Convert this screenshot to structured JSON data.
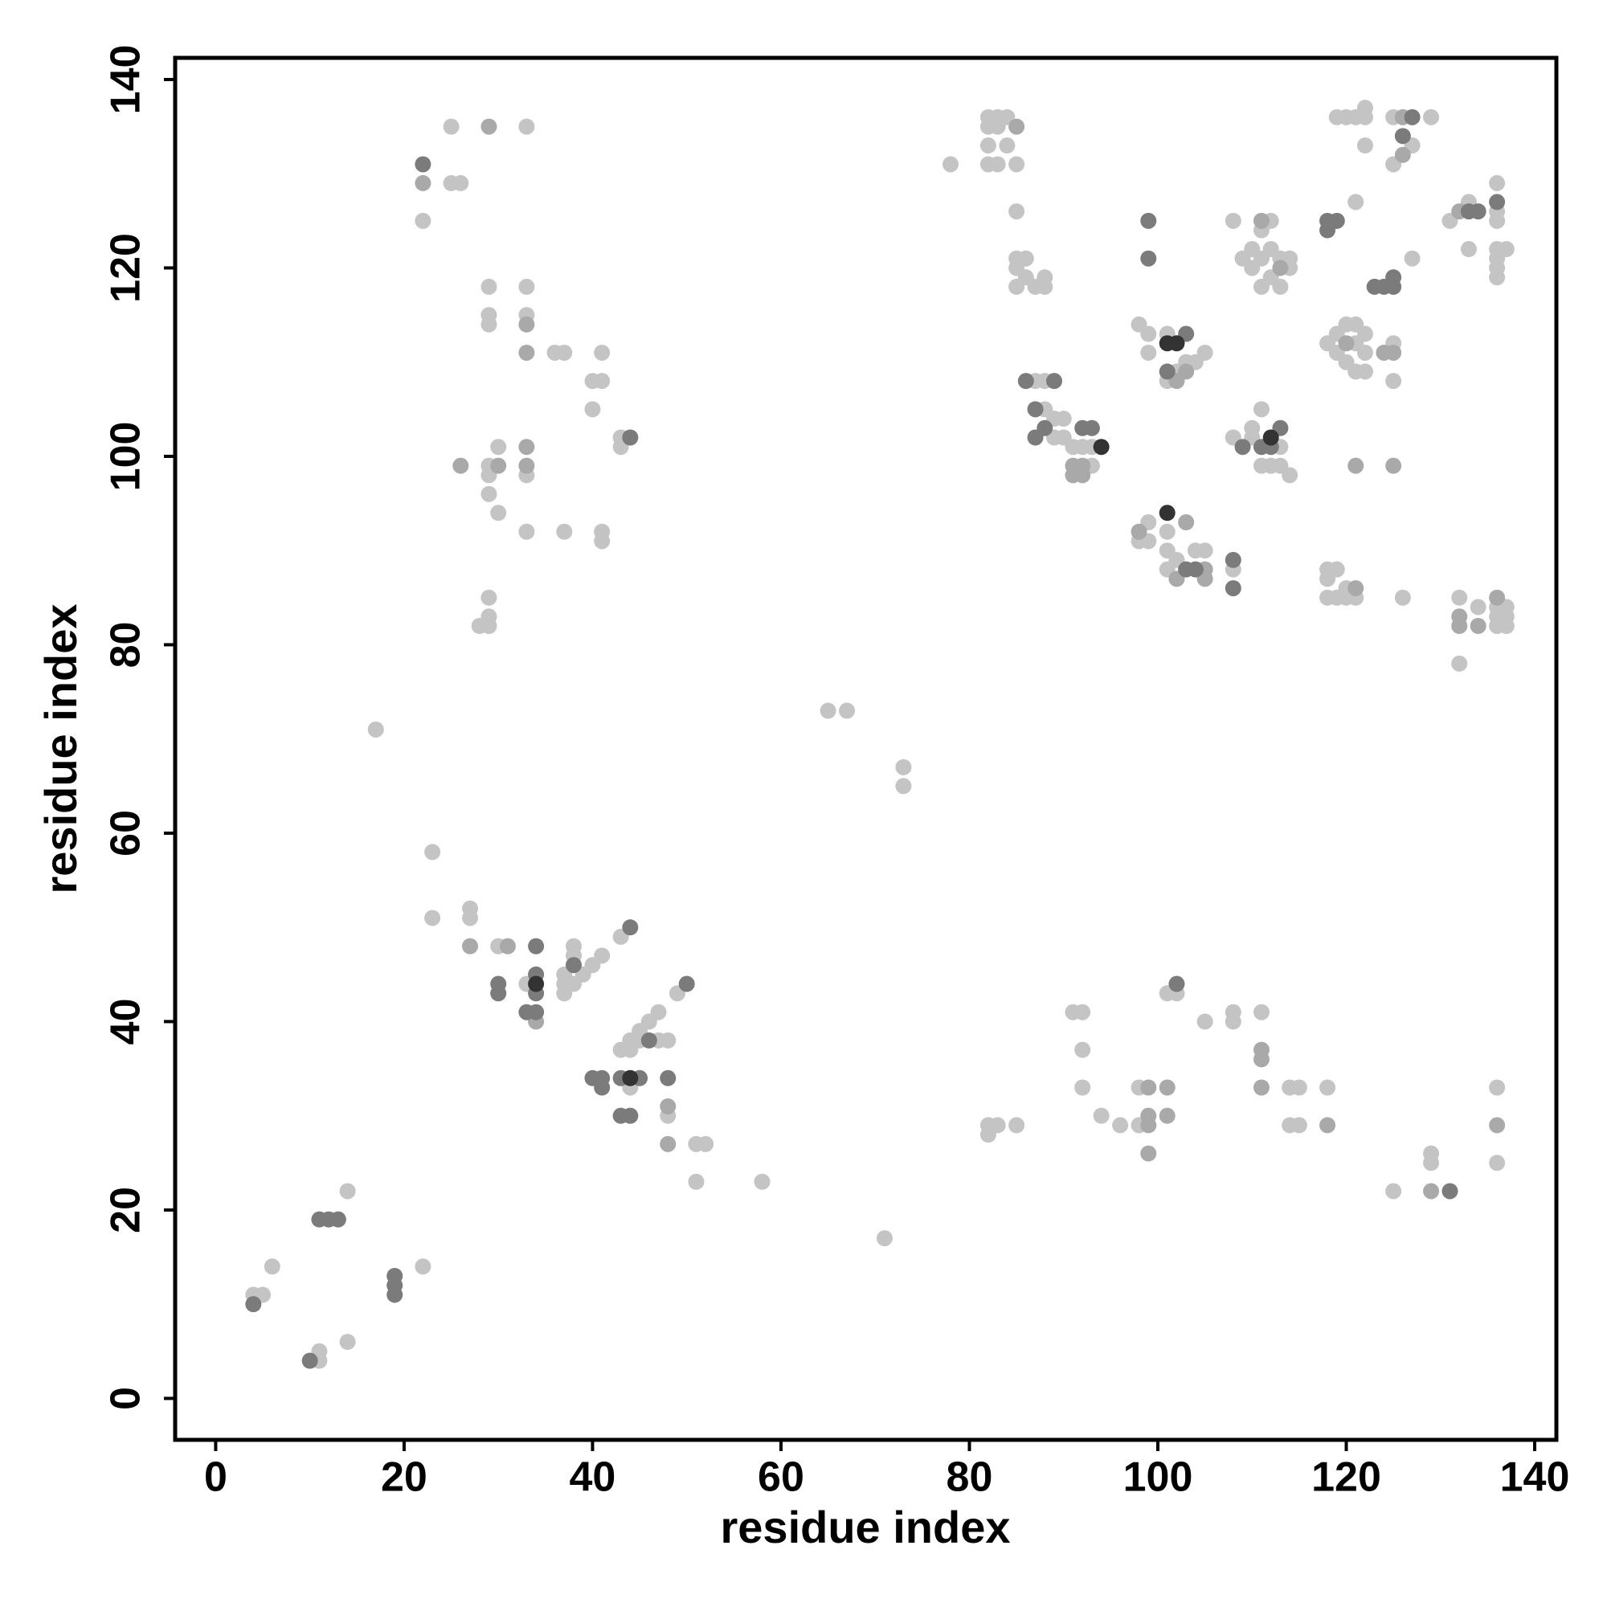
{
  "chart_data": {
    "type": "scatter",
    "x_label": "residue index",
    "y_label": "residue index",
    "xlim": [
      -4.3,
      142.3
    ],
    "ylim": [
      -4.4,
      142.3
    ],
    "xticks": [
      0,
      20,
      40,
      60,
      80,
      100,
      120,
      140
    ],
    "yticks": [
      0,
      20,
      40,
      60,
      80,
      100,
      120,
      140
    ],
    "series": [
      {
        "color": "#c4c4c4",
        "x": [
          4,
          5,
          6,
          11,
          11,
          14,
          14,
          22,
          17,
          23,
          23,
          27,
          27,
          30,
          33,
          37,
          37,
          37,
          38,
          38,
          38,
          39,
          40,
          41,
          43,
          44,
          43,
          44,
          44,
          45,
          45,
          46,
          47,
          47,
          48,
          48,
          49,
          51,
          52,
          51,
          58,
          65,
          67,
          73,
          73,
          71,
          25,
          33,
          25,
          26,
          22,
          29,
          29,
          29,
          33,
          33,
          36,
          37,
          41,
          40,
          41,
          40,
          43,
          43,
          29,
          29,
          30,
          29,
          30,
          33,
          33,
          37,
          41,
          41,
          29,
          29,
          28,
          29,
          82,
          82,
          83,
          85,
          91,
          92,
          92,
          92,
          94,
          96,
          98,
          98,
          101,
          102,
          105,
          108,
          108,
          111,
          114,
          115,
          114,
          115,
          118,
          125,
          129,
          129,
          136,
          136,
          78,
          82,
          83,
          84,
          82,
          83,
          82,
          84,
          82,
          83,
          85,
          85,
          85,
          86,
          85,
          86,
          85,
          87,
          88,
          88,
          87,
          88,
          88,
          89,
          90,
          89,
          90,
          91,
          93,
          92,
          93,
          98,
          99,
          99,
          101,
          102,
          103,
          104,
          105,
          101,
          98,
          99,
          99,
          101,
          101,
          101,
          102,
          104,
          105,
          108,
          108,
          112,
          111,
          110,
          111,
          112,
          113,
          114,
          110,
          112,
          111,
          113,
          114,
          109,
          108,
          110,
          110,
          111,
          111,
          112,
          113,
          114,
          113,
          118,
          119,
          119,
          120,
          121,
          120,
          121,
          122,
          122,
          121,
          122,
          118,
          119,
          118,
          120,
          118,
          119,
          120,
          121,
          126,
          119,
          120,
          121,
          122,
          122,
          122,
          121,
          125,
          129,
          127,
          125,
          125,
          125,
          127,
          131,
          133,
          133,
          136,
          136,
          136,
          136,
          137,
          136,
          136,
          136,
          132,
          134,
          136,
          137,
          136,
          137,
          136,
          137,
          132
        ],
        "values": [
          11,
          11,
          14,
          4,
          5,
          6,
          22,
          14,
          71,
          58,
          51,
          52,
          51,
          48,
          44,
          43,
          44,
          45,
          44,
          47,
          48,
          45,
          46,
          47,
          49,
          33,
          37,
          37,
          38,
          38,
          39,
          40,
          41,
          38,
          38,
          30,
          43,
          27,
          27,
          23,
          23,
          73,
          73,
          67,
          65,
          17,
          135,
          135,
          129,
          129,
          125,
          118,
          115,
          114,
          118,
          115,
          111,
          111,
          111,
          108,
          108,
          105,
          102,
          101,
          99,
          98,
          101,
          96,
          94,
          98,
          92,
          92,
          92,
          91,
          85,
          83,
          82,
          82,
          29,
          28,
          29,
          29,
          41,
          41,
          37,
          33,
          30,
          29,
          29,
          33,
          43,
          43,
          40,
          41,
          40,
          41,
          33,
          33,
          29,
          29,
          33,
          22,
          26,
          25,
          33,
          25,
          131,
          136,
          136,
          136,
          135,
          135,
          133,
          133,
          131,
          131,
          131,
          126,
          121,
          121,
          120,
          119,
          118,
          118,
          119,
          118,
          108,
          108,
          105,
          104,
          104,
          102,
          102,
          101,
          99,
          101,
          101,
          114,
          113,
          111,
          113,
          109,
          110,
          110,
          111,
          108,
          91,
          93,
          91,
          92,
          90,
          88,
          89,
          90,
          90,
          88,
          125,
          125,
          124,
          122,
          121,
          122,
          121,
          121,
          120,
          119,
          118,
          118,
          120,
          121,
          102,
          103,
          102,
          105,
          99,
          99,
          99,
          98,
          101,
          112,
          111,
          113,
          114,
          114,
          110,
          109,
          109,
          111,
          112,
          113,
          88,
          88,
          87,
          86,
          85,
          85,
          85,
          85,
          85,
          136,
          136,
          136,
          137,
          136,
          133,
          127,
          136,
          136,
          133,
          131,
          112,
          108,
          121,
          125,
          127,
          122,
          129,
          126,
          125,
          122,
          122,
          121,
          120,
          119,
          85,
          84,
          84,
          84,
          83,
          83,
          82,
          82,
          78
        ]
      },
      {
        "color": "#a9a9a9",
        "x": [
          27,
          31,
          34,
          48,
          48,
          29,
          22,
          33,
          33,
          26,
          30,
          33,
          33,
          99,
          99,
          99,
          99,
          101,
          101,
          111,
          111,
          111,
          118,
          129,
          136,
          85,
          91,
          92,
          91,
          92,
          102,
          103,
          98,
          102,
          103,
          105,
          105,
          111,
          113,
          120,
          121,
          121,
          126,
          126,
          124,
          125,
          125,
          132,
          132,
          132,
          134,
          136
        ],
        "values": [
          48,
          48,
          40,
          31,
          27,
          135,
          129,
          114,
          111,
          99,
          99,
          101,
          99,
          33,
          30,
          29,
          26,
          33,
          30,
          37,
          36,
          33,
          29,
          22,
          29,
          135,
          99,
          99,
          98,
          98,
          108,
          109,
          92,
          87,
          93,
          88,
          87,
          125,
          120,
          112,
          86,
          99,
          136,
          132,
          111,
          111,
          99,
          126,
          83,
          82,
          82,
          85
        ]
      },
      {
        "color": "#7b7b7b",
        "x": [
          4,
          10,
          11,
          12,
          13,
          19,
          19,
          19,
          30,
          30,
          33,
          34,
          34,
          34,
          34,
          38,
          44,
          40,
          41,
          41,
          43,
          45,
          43,
          44,
          46,
          48,
          50,
          22,
          44,
          102,
          131,
          86,
          89,
          87,
          87,
          88,
          92,
          93,
          103,
          101,
          99,
          99,
          103,
          104,
          108,
          108,
          109,
          111,
          112,
          113,
          118,
          118,
          119,
          127,
          126,
          123,
          124,
          125,
          125,
          133,
          134,
          136
        ],
        "values": [
          10,
          4,
          19,
          19,
          19,
          11,
          12,
          13,
          44,
          43,
          41,
          41,
          48,
          45,
          43,
          46,
          50,
          34,
          34,
          33,
          34,
          34,
          30,
          30,
          38,
          34,
          44,
          131,
          102,
          44,
          22,
          108,
          108,
          105,
          102,
          103,
          103,
          103,
          113,
          109,
          125,
          121,
          88,
          88,
          89,
          86,
          101,
          101,
          101,
          103,
          124,
          125,
          125,
          136,
          134,
          118,
          118,
          118,
          119,
          126,
          126,
          127
        ]
      },
      {
        "color": "#333333",
        "x": [
          34,
          44,
          94,
          101,
          102,
          101,
          112
        ],
        "values": [
          44,
          34,
          101,
          112,
          112,
          94,
          102
        ]
      }
    ]
  }
}
